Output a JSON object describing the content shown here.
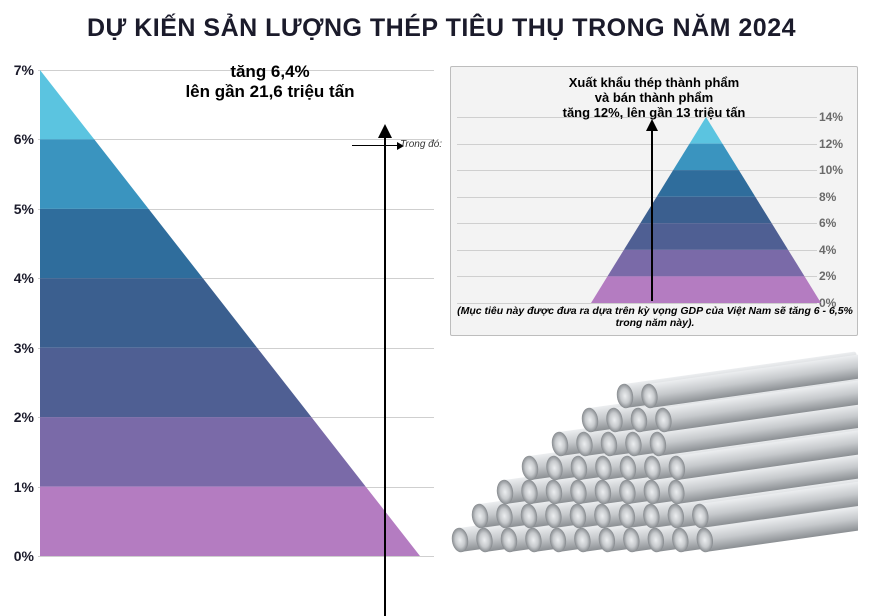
{
  "title": {
    "text": "DỰ KIẾN SẢN LƯỢNG THÉP TIÊU THỤ TRONG NĂM 2024",
    "fontsize": 25,
    "color": "#1b1b2b"
  },
  "background_color": "#ffffff",
  "grid_color": "#cfcfcf",
  "left_chart": {
    "type": "pyramid",
    "callout_line1": "tăng 6,4%",
    "callout_line2": "lên gần 21,6 triệu tấn",
    "callout_fontsize": 17,
    "axis_side": "left",
    "ylim": [
      0,
      7
    ],
    "ytick_step": 1,
    "tick_labels": [
      "0%",
      "1%",
      "2%",
      "3%",
      "4%",
      "5%",
      "6%",
      "7%"
    ],
    "tick_color": "#1b1b2b",
    "band_colors": [
      "#b47cc1",
      "#7a6aa8",
      "#4f5f93",
      "#3b5f8f",
      "#2f6d9c",
      "#3a94bf",
      "#5bc4e0"
    ],
    "connector_label": "Trong đó:"
  },
  "right_chart": {
    "type": "pyramid",
    "panel_bg": "#f3f3f3",
    "panel_border": "#bdbdbd",
    "callout_line1": "Xuất khẩu thép thành phẩm",
    "callout_line2": "và bán thành phẩm",
    "callout_line3": "tăng 12%, lên gần 13 triệu tấn",
    "callout_fontsize": 13,
    "axis_side": "right",
    "ylim": [
      0,
      14
    ],
    "ytick_step": 2,
    "tick_labels": [
      "0%",
      "2%",
      "4%",
      "6%",
      "8%",
      "10%",
      "12%",
      "14%"
    ],
    "tick_color": "#6a6a6a",
    "band_colors": [
      "#b47cc1",
      "#7a6aa8",
      "#4f5f93",
      "#3b5f8f",
      "#2f6d9c",
      "#3a94bf",
      "#5bc4e0"
    ],
    "footnote": "(Mục tiêu này được đưa ra dựa trên kỳ vọng GDP của Việt Nam sẽ tăng 6 - 6,5% trong năm này).",
    "footnote_fontsize": 10.5
  },
  "steel_illustration": {
    "rod_fill": "#c6c9cc",
    "rod_dark": "#8b8f93",
    "rod_hilite": "#eceef0",
    "rows": [
      {
        "y": 200,
        "count": 11,
        "x0": 10,
        "len": 360
      },
      {
        "y": 176,
        "count": 10,
        "x0": 30,
        "len": 345
      },
      {
        "y": 152,
        "count": 8,
        "x0": 55,
        "len": 330
      },
      {
        "y": 128,
        "count": 7,
        "x0": 80,
        "len": 310
      },
      {
        "y": 104,
        "count": 5,
        "x0": 110,
        "len": 290
      },
      {
        "y": 80,
        "count": 4,
        "x0": 140,
        "len": 265
      },
      {
        "y": 56,
        "count": 2,
        "x0": 175,
        "len": 235
      }
    ],
    "rod_radius": 12
  }
}
